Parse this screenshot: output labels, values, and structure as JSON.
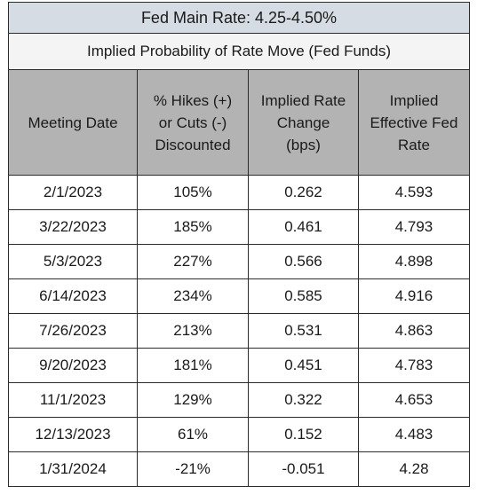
{
  "table": {
    "title": "Fed Main Rate: 4.25-4.50%",
    "subtitle": "Implied Probability of Rate Move (Fed Funds)",
    "columns": [
      [
        "Meeting Date"
      ],
      [
        "% Hikes (+)",
        "or Cuts (-)",
        "Discounted"
      ],
      [
        "Implied Rate",
        "Change",
        "(bps)"
      ],
      [
        "Implied",
        "Effective Fed",
        "Rate"
      ]
    ],
    "rows": [
      [
        "2/1/2023",
        "105%",
        "0.262",
        "4.593"
      ],
      [
        "3/22/2023",
        "185%",
        "0.461",
        "4.793"
      ],
      [
        "5/3/2023",
        "227%",
        "0.566",
        "4.898"
      ],
      [
        "6/14/2023",
        "234%",
        "0.585",
        "4.916"
      ],
      [
        "7/26/2023",
        "213%",
        "0.531",
        "4.863"
      ],
      [
        "9/20/2023",
        "181%",
        "0.451",
        "4.783"
      ],
      [
        "11/1/2023",
        "129%",
        "0.322",
        "4.653"
      ],
      [
        "12/13/2023",
        "61%",
        "0.152",
        "4.483"
      ],
      [
        "1/31/2024",
        "-21%",
        "-0.051",
        "4.28"
      ]
    ],
    "colors": {
      "title_bg": "#d6dce3",
      "subtitle_bg": "#f4f4f4",
      "header_bg": "#b3b3b3",
      "border": "#2b2b2b"
    }
  },
  "chart_data": {
    "type": "table",
    "title": "Fed Main Rate: 4.25-4.50%",
    "subtitle": "Implied Probability of Rate Move (Fed Funds)",
    "columns": [
      "Meeting Date",
      "% Hikes (+) or Cuts (-) Discounted",
      "Implied Rate Change (bps)",
      "Implied Effective Fed Rate"
    ],
    "x": [
      "2/1/2023",
      "3/22/2023",
      "5/3/2023",
      "6/14/2023",
      "7/26/2023",
      "9/20/2023",
      "11/1/2023",
      "12/13/2023",
      "1/31/2024"
    ],
    "series": [
      {
        "name": "% Hikes (+) or Cuts (-) Discounted",
        "values": [
          105,
          185,
          227,
          234,
          213,
          181,
          129,
          61,
          -21
        ]
      },
      {
        "name": "Implied Rate Change (bps)",
        "values": [
          0.262,
          0.461,
          0.566,
          0.585,
          0.531,
          0.451,
          0.322,
          0.152,
          -0.051
        ]
      },
      {
        "name": "Implied Effective Fed Rate",
        "values": [
          4.593,
          4.793,
          4.898,
          4.916,
          4.863,
          4.783,
          4.653,
          4.483,
          4.28
        ]
      }
    ]
  }
}
